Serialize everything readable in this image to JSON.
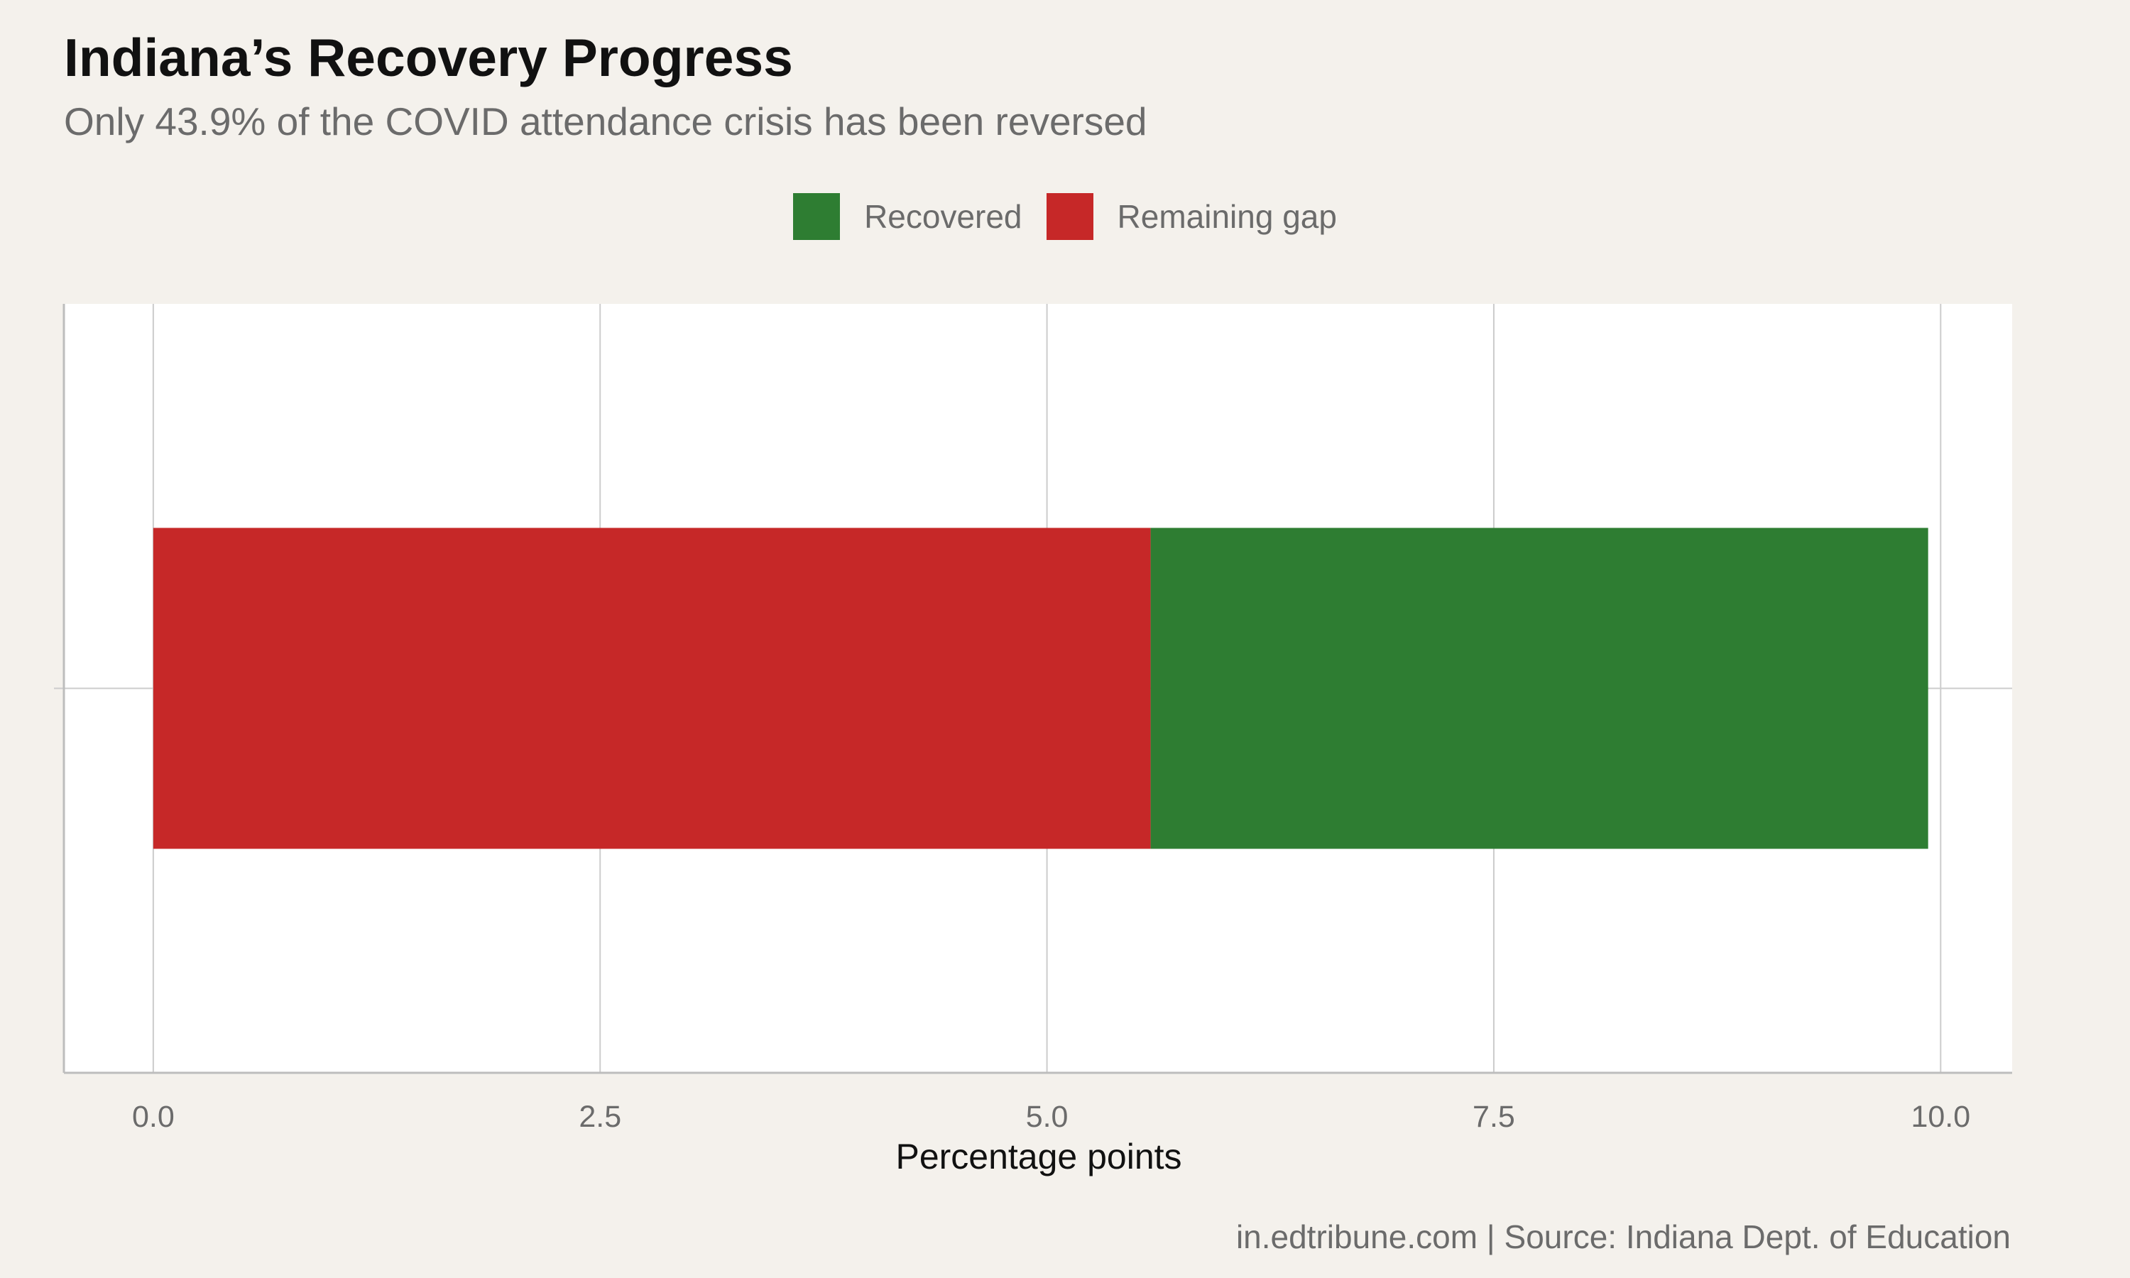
{
  "title": "Indiana’s Recovery Progress",
  "subtitle": "Only 43.9% of the COVID attendance crisis has been reversed",
  "caption": "in.edtribune.com | Source: Indiana Dept. of Education",
  "colors": {
    "background": "#f4f1ec",
    "panel": "#ffffff",
    "grid": "#cccccc",
    "remaining": "#c62828",
    "recovered": "#2e7d32"
  },
  "legend": {
    "placement": "top-center",
    "items": [
      {
        "label": "Recovered",
        "color": "#2e7d32"
      },
      {
        "label": "Remaining gap",
        "color": "#c62828"
      }
    ]
  },
  "chart_data": {
    "type": "bar",
    "orientation": "horizontal",
    "stacked": true,
    "title": "Indiana’s Recovery Progress",
    "subtitle": "Only 43.9% of the COVID attendance crisis has been reversed",
    "xlabel": "Percentage points",
    "ylabel": "",
    "xlim": [
      -0.5,
      10.4
    ],
    "x_ticks": [
      0.0,
      2.5,
      5.0,
      7.5,
      10.0
    ],
    "x_tick_labels": [
      "0.0",
      "2.5",
      "5.0",
      "7.5",
      "10.0"
    ],
    "grid": true,
    "categories": [
      ""
    ],
    "series": [
      {
        "name": "Remaining gap",
        "color": "#c62828",
        "values": [
          5.58
        ]
      },
      {
        "name": "Recovered",
        "color": "#2e7d32",
        "values": [
          4.35
        ]
      }
    ]
  }
}
